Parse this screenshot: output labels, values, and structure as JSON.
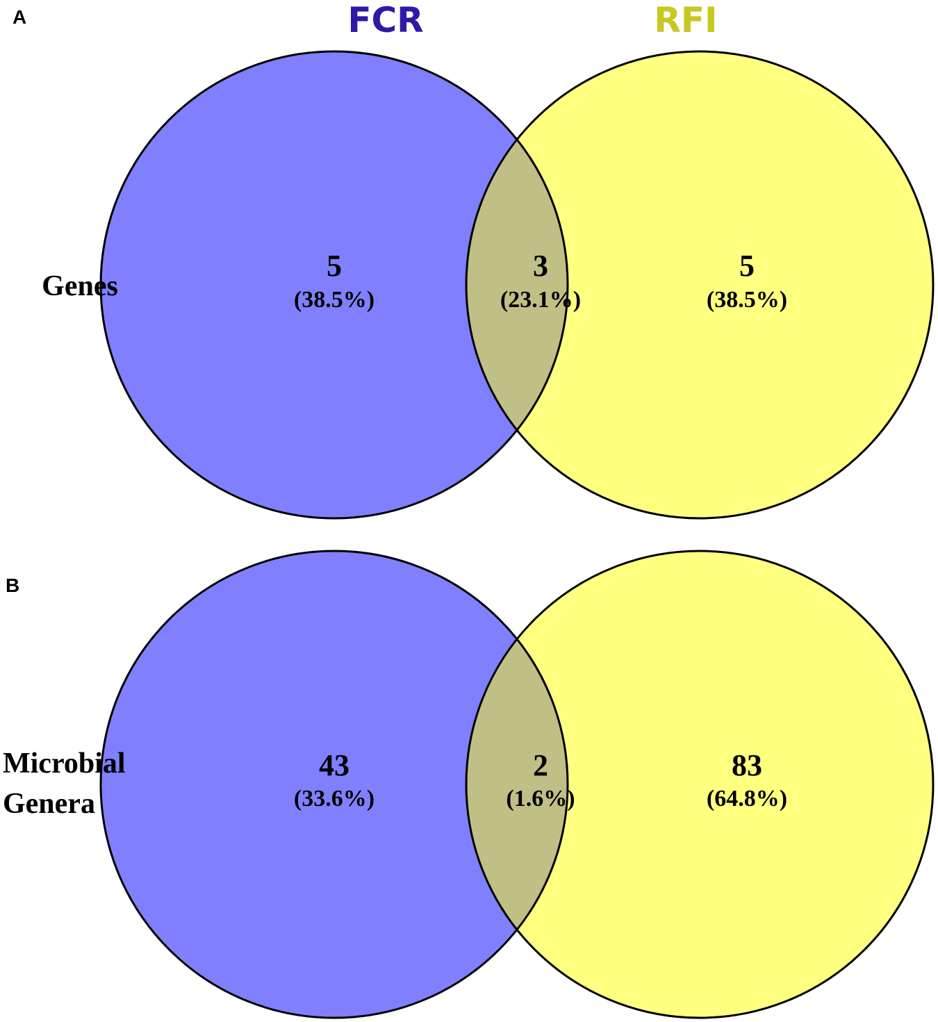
{
  "colors": {
    "fcr_fill": "#8080ff",
    "rfi_fill": "#ffff80",
    "overlap_fill": "#c0bf86",
    "fcr_title": "#2e1aa6",
    "rfi_title": "#c8c820",
    "stroke": "#000000"
  },
  "sets": {
    "left": "FCR",
    "right": "RFI"
  },
  "panels": [
    {
      "letter": "A",
      "label_lines": [
        "Genes"
      ],
      "regions": {
        "left_only": {
          "count": "5",
          "percent": "(38.5%)"
        },
        "both": {
          "count": "3",
          "percent": "(23.1%)"
        },
        "right_only": {
          "count": "5",
          "percent": "(38.5%)"
        }
      }
    },
    {
      "letter": "B",
      "label_lines": [
        "Microbial",
        "Genera"
      ],
      "regions": {
        "left_only": {
          "count": "43",
          "percent": "(33.6%)"
        },
        "both": {
          "count": "2",
          "percent": "(1.6%)"
        },
        "right_only": {
          "count": "83",
          "percent": "(64.8%)"
        }
      }
    }
  ]
}
